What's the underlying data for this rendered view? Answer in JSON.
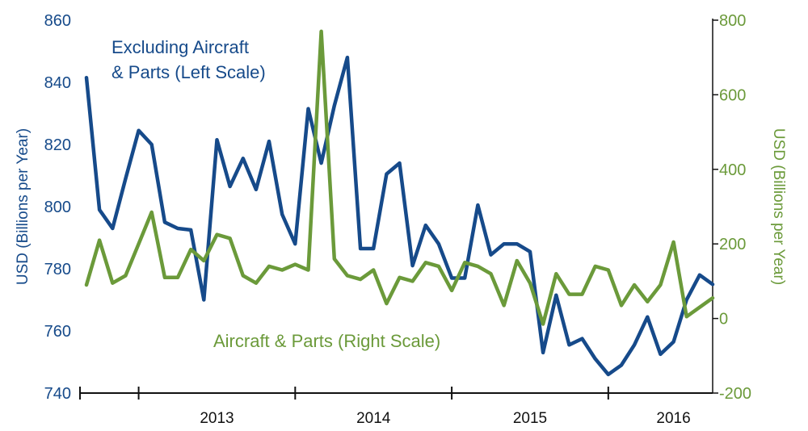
{
  "chart_data": {
    "type": "line",
    "title": "",
    "xlabel": "",
    "ylabel_left": "USD (Billions per Year)",
    "ylabel_right": "USD (Billions per Year)",
    "ylim_left": [
      740,
      860
    ],
    "ylim_right": [
      -200,
      800
    ],
    "yticks_left": [
      "740",
      "760",
      "780",
      "800",
      "820",
      "840",
      "860"
    ],
    "yticks_right": [
      "-200",
      "0",
      "200",
      "400",
      "600",
      "800"
    ],
    "year_labels": [
      "2013",
      "2014",
      "2015",
      "2016"
    ],
    "months_start": "2012-09",
    "annotations": {
      "excluding_line1": "Excluding Aircraft",
      "excluding_line2": "& Parts (Left Scale)",
      "aircraft": "Aircraft & Parts (Right Scale)"
    },
    "series": [
      {
        "name": "Excluding Aircraft & Parts (Left Scale)",
        "axis": "left",
        "color": "#164a8a",
        "values": [
          841.5,
          799,
          793,
          809,
          824.5,
          820,
          795,
          793,
          792.5,
          770,
          821.5,
          806.5,
          815.5,
          805.5,
          821,
          797.5,
          788,
          831.5,
          814,
          832.5,
          848,
          786.5,
          786.5,
          810.5,
          814,
          781,
          794,
          788,
          777,
          777,
          800.5,
          784.5,
          788,
          788,
          785.5,
          753,
          771.5,
          755.5,
          757.5,
          751,
          746,
          749,
          755.5,
          764.5,
          752.5,
          756.5,
          770,
          778,
          775
        ]
      },
      {
        "name": "Aircraft & Parts (Right Scale)",
        "axis": "right",
        "color": "#6b9a3a",
        "values": [
          90,
          210,
          95,
          115,
          200,
          285,
          110,
          110,
          185,
          155,
          225,
          215,
          115,
          95,
          140,
          130,
          145,
          130,
          770,
          160,
          115,
          105,
          130,
          40,
          110,
          100,
          150,
          140,
          75,
          150,
          140,
          120,
          35,
          155,
          95,
          -15,
          120,
          65,
          65,
          140,
          130,
          35,
          90,
          45,
          90,
          205,
          5,
          30,
          55
        ]
      }
    ]
  }
}
